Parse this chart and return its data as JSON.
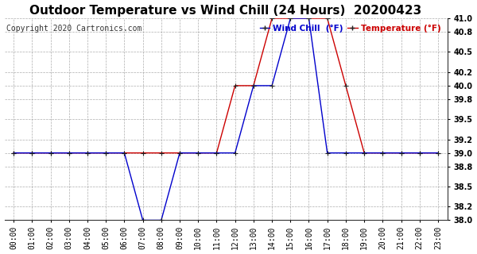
{
  "title": "Outdoor Temperature vs Wind Chill (24 Hours)  20200423",
  "copyright_text": "Copyright 2020 Cartronics.com",
  "legend_wind_chill": "Wind Chill  (°F)",
  "legend_temperature": "Temperature (°F)",
  "x_labels": [
    "00:00",
    "01:00",
    "02:00",
    "03:00",
    "04:00",
    "05:00",
    "06:00",
    "07:00",
    "08:00",
    "09:00",
    "10:00",
    "11:00",
    "12:00",
    "13:00",
    "14:00",
    "15:00",
    "16:00",
    "17:00",
    "18:00",
    "19:00",
    "20:00",
    "21:00",
    "22:00",
    "23:00"
  ],
  "x_values": [
    0,
    1,
    2,
    3,
    4,
    5,
    6,
    7,
    8,
    9,
    10,
    11,
    12,
    13,
    14,
    15,
    16,
    17,
    18,
    19,
    20,
    21,
    22,
    23
  ],
  "temperature_x": [
    0,
    1,
    2,
    3,
    4,
    5,
    6,
    7,
    8,
    9,
    10,
    11,
    12,
    13,
    14,
    15,
    16,
    17,
    18,
    19,
    20,
    21,
    22,
    23
  ],
  "temperature_y": [
    39,
    39,
    39,
    39,
    39,
    39,
    39,
    39,
    39,
    39,
    39,
    39,
    40,
    40,
    41,
    41,
    41,
    41,
    40,
    39,
    39,
    39,
    39,
    39
  ],
  "wind_chill_x": [
    0,
    1,
    2,
    3,
    4,
    5,
    6,
    7,
    8,
    9,
    10,
    11,
    12,
    13,
    14,
    15,
    16,
    17,
    18,
    19,
    20,
    21,
    22,
    23
  ],
  "wind_chill_y": [
    39,
    39,
    39,
    39,
    39,
    39,
    39,
    38,
    38,
    39,
    39,
    39,
    39,
    40,
    40,
    41,
    41,
    39,
    39,
    39,
    39,
    39,
    39,
    39
  ],
  "ylim": [
    38.0,
    41.0
  ],
  "yticks": [
    38.0,
    38.2,
    38.5,
    38.8,
    39.0,
    39.2,
    39.5,
    39.8,
    40.0,
    40.2,
    40.5,
    40.8,
    41.0
  ],
  "temperature_color": "#cc0000",
  "wind_chill_color": "#0000cc",
  "background_color": "#ffffff",
  "grid_color": "#999999",
  "title_fontsize": 11,
  "tick_fontsize": 7,
  "copyright_fontsize": 7,
  "legend_fontsize": 7.5
}
